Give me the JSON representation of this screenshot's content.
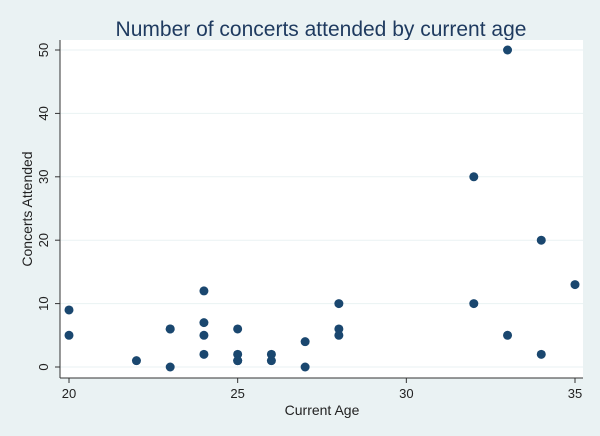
{
  "chart_data": {
    "type": "scatter",
    "title": "Number of concerts attended by current age",
    "xlabel": "Current Age",
    "ylabel": "Concerts Attended",
    "xlim": [
      20,
      35
    ],
    "ylim": [
      0,
      50
    ],
    "xticks": [
      20,
      25,
      30,
      35
    ],
    "yticks": [
      0,
      10,
      20,
      30,
      40,
      50
    ],
    "grid": true,
    "marker_color": "#1a476f",
    "background_color": "#eaf2f3",
    "plot_background_color": "#ffffff",
    "series": [
      {
        "x": [
          20,
          20,
          22,
          23,
          23,
          23,
          24,
          24,
          24,
          24,
          25,
          25,
          25,
          25,
          26,
          26,
          27,
          27,
          28,
          28,
          28,
          32,
          32,
          33,
          33,
          34,
          34,
          35
        ],
        "y": [
          9,
          5,
          1,
          6,
          6,
          0,
          12,
          7,
          5,
          2,
          6,
          2,
          1,
          1,
          2,
          1,
          4,
          0,
          10,
          6,
          5,
          30,
          10,
          50,
          5,
          20,
          2,
          13
        ]
      }
    ]
  }
}
